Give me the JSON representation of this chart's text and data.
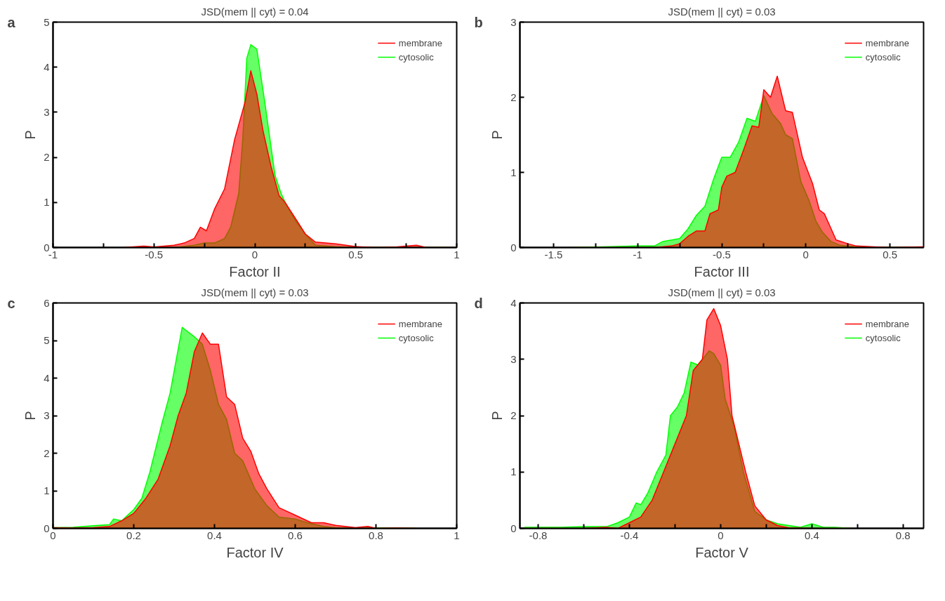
{
  "chart_data": [
    {
      "type": "area",
      "title": "JSD(mem || cyt) = 0.04",
      "xlabel": "Factor II",
      "ylabel": "P",
      "annotations": [
        "a"
      ],
      "legend": "top right",
      "grid": false,
      "xlim": [
        -1,
        1
      ],
      "xticks": [
        -1,
        {
          "value": -0.75,
          "label": null
        },
        -0.5,
        {
          "value": -0.25,
          "label": null
        },
        0,
        {
          "value": 0.25,
          "label": null
        },
        0.5,
        {
          "value": 0.75,
          "label": null
        },
        1
      ],
      "ylim": [
        0,
        5
      ],
      "yticks": [
        0,
        1,
        2,
        3,
        4,
        5
      ],
      "series": [
        {
          "name": "cytosolic",
          "color": "#00ff00",
          "x": [
            -0.65,
            -0.5,
            -0.4,
            -0.3,
            -0.25,
            -0.2,
            -0.15,
            -0.12,
            -0.08,
            -0.06,
            -0.04,
            -0.02,
            0.01,
            0.05,
            0.1,
            0.13,
            0.15,
            0.2,
            0.25,
            0.3,
            0.4,
            0.5,
            1
          ],
          "values": [
            0,
            0,
            0,
            0.05,
            0.1,
            0.1,
            0.2,
            0.45,
            1.2,
            2.4,
            4.2,
            4.5,
            4.4,
            3.2,
            1.6,
            1.2,
            1.0,
            0.6,
            0.3,
            0.05,
            0.02,
            0,
            0
          ]
        },
        {
          "name": "membrane",
          "color": "#ff0000",
          "x": [
            -0.65,
            -0.55,
            -0.5,
            -0.4,
            -0.35,
            -0.3,
            -0.27,
            -0.24,
            -0.2,
            -0.15,
            -0.1,
            -0.05,
            -0.02,
            0.01,
            0.04,
            0.08,
            0.12,
            0.15,
            0.2,
            0.25,
            0.3,
            0.4,
            0.5,
            0.6,
            0.7,
            0.8,
            0.85,
            1
          ],
          "values": [
            0,
            0.03,
            0.01,
            0.05,
            0.1,
            0.2,
            0.45,
            0.37,
            0.85,
            1.3,
            2.4,
            3.2,
            3.92,
            3.4,
            2.6,
            1.8,
            1.15,
            1.0,
            0.65,
            0.3,
            0.12,
            0.08,
            0.02,
            0,
            0.01,
            0.05,
            0,
            0
          ]
        }
      ]
    },
    {
      "type": "area",
      "title": "JSD(mem || cyt) = 0.03",
      "xlabel": "Factor III",
      "ylabel": "P",
      "annotations": [
        "b"
      ],
      "legend": "top right",
      "grid": false,
      "xlim": [
        -1.7,
        0.7
      ],
      "xticks": [
        -1.5,
        {
          "value": -1.25,
          "label": null
        },
        -1,
        {
          "value": -0.75,
          "label": null
        },
        -0.5,
        {
          "value": -0.25,
          "label": null
        },
        0,
        {
          "value": 0.25,
          "label": null
        },
        0.5
      ],
      "ylim": [
        0,
        3
      ],
      "yticks": [
        0,
        1,
        2,
        3
      ],
      "series": [
        {
          "name": "cytosolic",
          "color": "#00ff00",
          "x": [
            -1.4,
            -1.2,
            -1,
            -0.9,
            -0.85,
            -0.75,
            -0.7,
            -0.65,
            -0.6,
            -0.55,
            -0.5,
            -0.45,
            -0.4,
            -0.35,
            -0.3,
            -0.25,
            -0.2,
            -0.15,
            -0.12,
            -0.08,
            -0.03,
            0.02,
            0.06,
            0.1,
            0.15,
            0.2,
            0.3,
            0.5,
            0.7
          ],
          "values": [
            0,
            0.01,
            0.02,
            0.02,
            0.08,
            0.12,
            0.25,
            0.43,
            0.55,
            0.9,
            1.2,
            1.2,
            1.4,
            1.72,
            1.68,
            2.02,
            1.78,
            1.65,
            1.5,
            1.45,
            0.88,
            0.62,
            0.35,
            0.2,
            0.08,
            0.03,
            0.01,
            0,
            0
          ]
        },
        {
          "name": "membrane",
          "color": "#ff0000",
          "x": [
            -1.4,
            -1.0,
            -0.9,
            -0.8,
            -0.75,
            -0.7,
            -0.65,
            -0.6,
            -0.57,
            -0.52,
            -0.5,
            -0.47,
            -0.42,
            -0.37,
            -0.32,
            -0.28,
            -0.25,
            -0.21,
            -0.17,
            -0.12,
            -0.08,
            -0.02,
            0.04,
            0.08,
            0.11,
            0.18,
            0.25,
            0.3,
            0.4,
            0.5,
            0.7
          ],
          "values": [
            0,
            0,
            0,
            0.02,
            0.05,
            0.15,
            0.22,
            0.22,
            0.45,
            0.5,
            0.8,
            0.95,
            1.0,
            1.3,
            1.62,
            1.6,
            2.1,
            2.0,
            2.28,
            1.82,
            1.8,
            1.2,
            0.85,
            0.5,
            0.45,
            0.1,
            0.05,
            0.02,
            0.01,
            0,
            0.01
          ]
        }
      ]
    },
    {
      "type": "area",
      "title": "JSD(mem || cyt) = 0.03",
      "xlabel": "Factor IV",
      "ylabel": "P",
      "annotations": [
        "c"
      ],
      "legend": "top right",
      "grid": false,
      "xlim": [
        0,
        1
      ],
      "xticks": [
        0,
        0.2,
        0.4,
        0.6,
        0.8,
        1
      ],
      "ylim": [
        0,
        6
      ],
      "yticks": [
        0,
        1,
        2,
        3,
        4,
        5,
        6
      ],
      "series": [
        {
          "name": "cytosolic",
          "color": "#00ff00",
          "x": [
            0,
            0.05,
            0.1,
            0.14,
            0.15,
            0.17,
            0.19,
            0.2,
            0.22,
            0.24,
            0.27,
            0.29,
            0.32,
            0.35,
            0.37,
            0.39,
            0.41,
            0.43,
            0.45,
            0.47,
            0.5,
            0.53,
            0.56,
            0.6,
            0.63,
            0.67,
            0.7,
            0.8,
            0.9
          ],
          "values": [
            0.02,
            0.03,
            0.07,
            0.1,
            0.25,
            0.2,
            0.4,
            0.5,
            0.8,
            1.5,
            2.8,
            3.6,
            5.35,
            5.1,
            4.9,
            4.2,
            3.3,
            2.9,
            2.0,
            1.8,
            1.05,
            0.6,
            0.3,
            0.25,
            0.15,
            0.05,
            0.02,
            0.01,
            0
          ]
        },
        {
          "name": "membrane",
          "color": "#ff0000",
          "x": [
            0,
            0.05,
            0.1,
            0.14,
            0.17,
            0.2,
            0.23,
            0.26,
            0.29,
            0.31,
            0.33,
            0.35,
            0.37,
            0.39,
            0.41,
            0.43,
            0.45,
            0.47,
            0.49,
            0.51,
            0.53,
            0.56,
            0.6,
            0.64,
            0.67,
            0.7,
            0.75,
            0.78,
            0.8,
            0.85,
            0.9
          ],
          "values": [
            0.02,
            0.01,
            0.02,
            0.05,
            0.2,
            0.4,
            0.8,
            1.3,
            2.2,
            3.0,
            3.6,
            4.7,
            5.2,
            4.9,
            4.9,
            3.5,
            3.3,
            2.4,
            2.05,
            1.45,
            1.05,
            0.55,
            0.35,
            0.15,
            0.15,
            0.08,
            0.02,
            0.05,
            0,
            0.01,
            0
          ]
        }
      ]
    },
    {
      "type": "area",
      "title": "JSD(mem || cyt) = 0.03",
      "xlabel": "Factor V",
      "ylabel": "P",
      "annotations": [
        "d"
      ],
      "legend": "top right",
      "grid": false,
      "xlim": [
        -0.88,
        0.89
      ],
      "xticks": [
        -0.8,
        {
          "value": -0.6,
          "label": null
        },
        -0.4,
        {
          "value": -0.2,
          "label": null
        },
        0,
        {
          "value": 0.2,
          "label": null
        },
        0.4,
        {
          "value": 0.6,
          "label": null
        },
        0.8
      ],
      "ylim": [
        0,
        4
      ],
      "yticks": [
        0,
        1,
        2,
        3,
        4
      ],
      "series": [
        {
          "name": "cytosolic",
          "color": "#00ff00",
          "x": [
            -0.86,
            -0.7,
            -0.6,
            -0.5,
            -0.45,
            -0.4,
            -0.37,
            -0.35,
            -0.32,
            -0.28,
            -0.24,
            -0.22,
            -0.19,
            -0.16,
            -0.13,
            -0.1,
            -0.05,
            -0.03,
            0,
            0.02,
            0.06,
            0.1,
            0.15,
            0.2,
            0.25,
            0.35,
            0.4,
            0.45,
            0.5,
            0.57
          ],
          "values": [
            0.02,
            0.02,
            0.03,
            0.03,
            0.1,
            0.2,
            0.45,
            0.42,
            0.62,
            1.0,
            1.3,
            2.0,
            2.15,
            2.4,
            2.95,
            2.9,
            3.15,
            3.1,
            2.9,
            2.3,
            1.8,
            1.0,
            0.3,
            0.15,
            0.08,
            0.02,
            0.08,
            0.02,
            0.02,
            0
          ]
        },
        {
          "name": "membrane",
          "color": "#ff0000",
          "x": [
            -0.86,
            -0.7,
            -0.6,
            -0.5,
            -0.45,
            -0.4,
            -0.35,
            -0.3,
            -0.25,
            -0.2,
            -0.15,
            -0.12,
            -0.08,
            -0.06,
            -0.03,
            0,
            0.03,
            0.05,
            0.08,
            0.11,
            0.15,
            0.2,
            0.25,
            0.3,
            0.4,
            0.57
          ],
          "values": [
            0,
            0,
            0,
            0.02,
            0,
            0.1,
            0.2,
            0.5,
            1.0,
            1.5,
            2.0,
            2.8,
            3.0,
            3.7,
            3.9,
            3.6,
            3.0,
            2.0,
            1.5,
            1.0,
            0.4,
            0.15,
            0.05,
            0.01,
            0,
            0
          ]
        }
      ]
    }
  ]
}
